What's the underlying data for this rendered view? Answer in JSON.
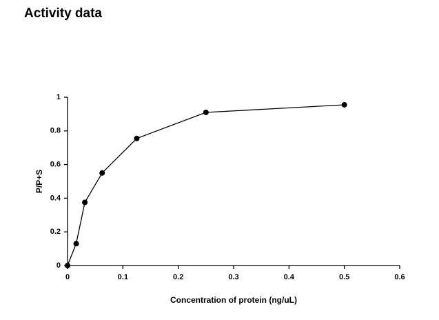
{
  "chart_data": {
    "type": "line",
    "title": "Activity data",
    "x_label": "Concentration of protein (ng/uL)",
    "y_label": "P/P+S",
    "x": [
      0,
      0.0156,
      0.03125,
      0.0625,
      0.125,
      0.25,
      0.5
    ],
    "values": [
      0,
      0.13,
      0.375,
      0.55,
      0.755,
      0.91,
      0.955
    ],
    "color": "#000000",
    "xlim": [
      0,
      0.6
    ],
    "xticks": [
      0,
      0.1,
      0.2,
      0.3,
      0.4,
      0.5,
      0.6
    ],
    "ylim": [
      0,
      1
    ],
    "yticks": [
      0,
      0.2,
      0.4,
      0.6,
      0.8,
      1
    ],
    "grid": false
  }
}
